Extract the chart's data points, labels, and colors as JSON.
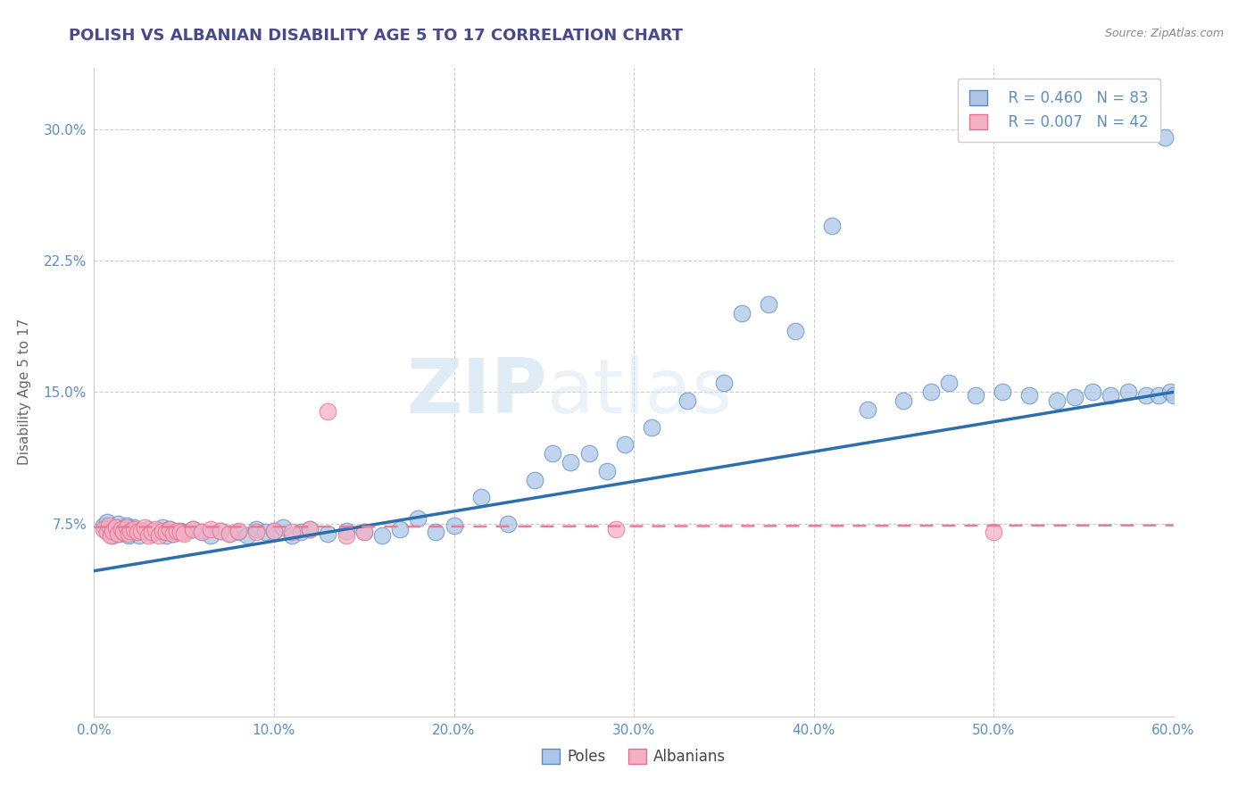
{
  "title": "POLISH VS ALBANIAN DISABILITY AGE 5 TO 17 CORRELATION CHART",
  "source": "Source: ZipAtlas.com",
  "ylabel": "Disability Age 5 to 17",
  "xlim": [
    0.0,
    0.6
  ],
  "ylim": [
    -0.035,
    0.335
  ],
  "xticks": [
    0.0,
    0.1,
    0.2,
    0.3,
    0.4,
    0.5,
    0.6
  ],
  "xticklabels": [
    "0.0%",
    "10.0%",
    "20.0%",
    "30.0%",
    "40.0%",
    "50.0%",
    "60.0%"
  ],
  "ytick_positions": [
    0.075,
    0.15,
    0.225,
    0.3
  ],
  "ytick_labels": [
    "7.5%",
    "15.0%",
    "22.5%",
    "30.0%"
  ],
  "grid_color": "#cccccc",
  "background_color": "#ffffff",
  "title_color": "#4a4a8a",
  "axis_color": "#5b8ec4",
  "poles_fill_color": "#adc6e8",
  "poles_edge_color": "#5b8ec4",
  "albanians_fill_color": "#f4b0c4",
  "albanians_edge_color": "#e8708c",
  "poles_line_color": "#2c6fad",
  "albanians_line_color": "#e87a9a",
  "legend_poles_r": "R = 0.460",
  "legend_poles_n": "N = 83",
  "legend_albanians_r": "R = 0.007",
  "legend_albanians_n": "N = 42",
  "legend_label_poles": "Poles",
  "legend_label_albanians": "Albanians",
  "poles_trend_x0": 0.0,
  "poles_trend_y0": 0.048,
  "poles_trend_x1": 0.6,
  "poles_trend_y1": 0.15,
  "albanians_trend_x0": 0.0,
  "albanians_trend_x1": 0.6,
  "albanians_trend_y0": 0.073,
  "albanians_trend_y1": 0.074,
  "watermark_zip": "ZIP",
  "watermark_atlas": "atlas",
  "poles_x": [
    0.005,
    0.007,
    0.008,
    0.009,
    0.01,
    0.011,
    0.012,
    0.013,
    0.014,
    0.015,
    0.017,
    0.018,
    0.019,
    0.02,
    0.022,
    0.023,
    0.025,
    0.027,
    0.03,
    0.032,
    0.034,
    0.036,
    0.038,
    0.04,
    0.042,
    0.044,
    0.046,
    0.048,
    0.05,
    0.055,
    0.06,
    0.065,
    0.07,
    0.075,
    0.08,
    0.085,
    0.09,
    0.095,
    0.1,
    0.105,
    0.11,
    0.115,
    0.12,
    0.13,
    0.14,
    0.15,
    0.16,
    0.17,
    0.18,
    0.19,
    0.2,
    0.215,
    0.23,
    0.245,
    0.255,
    0.265,
    0.275,
    0.285,
    0.295,
    0.31,
    0.33,
    0.35,
    0.36,
    0.375,
    0.39,
    0.41,
    0.43,
    0.45,
    0.465,
    0.475,
    0.49,
    0.505,
    0.52,
    0.535,
    0.545,
    0.555,
    0.565,
    0.575,
    0.585,
    0.592,
    0.598,
    0.6,
    0.595
  ],
  "poles_y": [
    0.074,
    0.076,
    0.072,
    0.07,
    0.068,
    0.073,
    0.071,
    0.075,
    0.069,
    0.072,
    0.07,
    0.074,
    0.068,
    0.072,
    0.073,
    0.07,
    0.068,
    0.071,
    0.072,
    0.069,
    0.07,
    0.071,
    0.073,
    0.068,
    0.072,
    0.069,
    0.07,
    0.071,
    0.07,
    0.072,
    0.07,
    0.068,
    0.071,
    0.069,
    0.07,
    0.068,
    0.072,
    0.07,
    0.071,
    0.073,
    0.068,
    0.07,
    0.072,
    0.069,
    0.071,
    0.07,
    0.068,
    0.072,
    0.078,
    0.07,
    0.074,
    0.09,
    0.075,
    0.1,
    0.115,
    0.11,
    0.115,
    0.105,
    0.12,
    0.13,
    0.145,
    0.155,
    0.195,
    0.2,
    0.185,
    0.245,
    0.14,
    0.145,
    0.15,
    0.155,
    0.148,
    0.15,
    0.148,
    0.145,
    0.147,
    0.15,
    0.148,
    0.15,
    0.148,
    0.148,
    0.15,
    0.148,
    0.295
  ],
  "albanians_x": [
    0.005,
    0.007,
    0.008,
    0.009,
    0.01,
    0.012,
    0.013,
    0.015,
    0.016,
    0.018,
    0.019,
    0.02,
    0.022,
    0.024,
    0.026,
    0.028,
    0.03,
    0.032,
    0.034,
    0.036,
    0.038,
    0.04,
    0.042,
    0.044,
    0.046,
    0.048,
    0.05,
    0.055,
    0.06,
    0.065,
    0.07,
    0.075,
    0.08,
    0.09,
    0.1,
    0.11,
    0.12,
    0.13,
    0.14,
    0.15,
    0.29,
    0.5
  ],
  "albanians_y": [
    0.072,
    0.07,
    0.074,
    0.068,
    0.071,
    0.073,
    0.069,
    0.072,
    0.07,
    0.073,
    0.069,
    0.071,
    0.072,
    0.07,
    0.071,
    0.073,
    0.068,
    0.07,
    0.072,
    0.068,
    0.071,
    0.07,
    0.072,
    0.069,
    0.071,
    0.07,
    0.069,
    0.072,
    0.07,
    0.072,
    0.071,
    0.069,
    0.071,
    0.07,
    0.071,
    0.07,
    0.072,
    0.139,
    0.068,
    0.07,
    0.072,
    0.07
  ]
}
